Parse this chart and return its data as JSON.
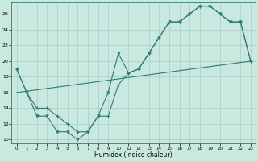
{
  "line1_x": [
    0,
    1,
    2,
    3,
    4,
    5,
    6,
    7,
    8,
    9,
    10,
    11,
    12,
    13,
    14,
    15,
    16,
    17,
    18,
    19,
    20,
    21,
    22,
    23
  ],
  "line1_y": [
    19,
    16,
    14,
    14,
    13,
    12,
    11,
    11,
    13,
    13,
    17,
    18.5,
    19,
    21,
    23,
    25,
    25,
    26,
    27,
    27,
    26,
    25,
    25,
    20
  ],
  "line2_x": [
    0,
    1,
    2,
    3,
    4,
    5,
    6,
    7,
    8,
    9,
    10,
    11,
    12,
    13,
    14,
    15,
    16,
    17,
    18,
    19,
    20,
    21,
    22,
    23
  ],
  "line2_y": [
    19,
    16,
    13,
    13,
    11,
    11,
    10,
    11,
    13,
    16,
    21,
    18.5,
    19,
    21,
    23,
    25,
    25,
    26,
    27,
    27,
    26,
    25,
    25,
    20
  ],
  "line3_x": [
    0,
    23
  ],
  "line3_y": [
    16,
    20
  ],
  "line_color": "#2e7d6e",
  "bg_color": "#c8e8e0",
  "grid_color": "#a8ccc4",
  "xlabel": "Humidex (Indice chaleur)",
  "xlim": [
    -0.5,
    23.5
  ],
  "ylim": [
    9.5,
    27.5
  ],
  "yticks": [
    10,
    12,
    14,
    16,
    18,
    20,
    22,
    24,
    26
  ],
  "xticks": [
    0,
    1,
    2,
    3,
    4,
    5,
    6,
    7,
    8,
    9,
    10,
    11,
    12,
    13,
    14,
    15,
    16,
    17,
    18,
    19,
    20,
    21,
    22,
    23
  ]
}
